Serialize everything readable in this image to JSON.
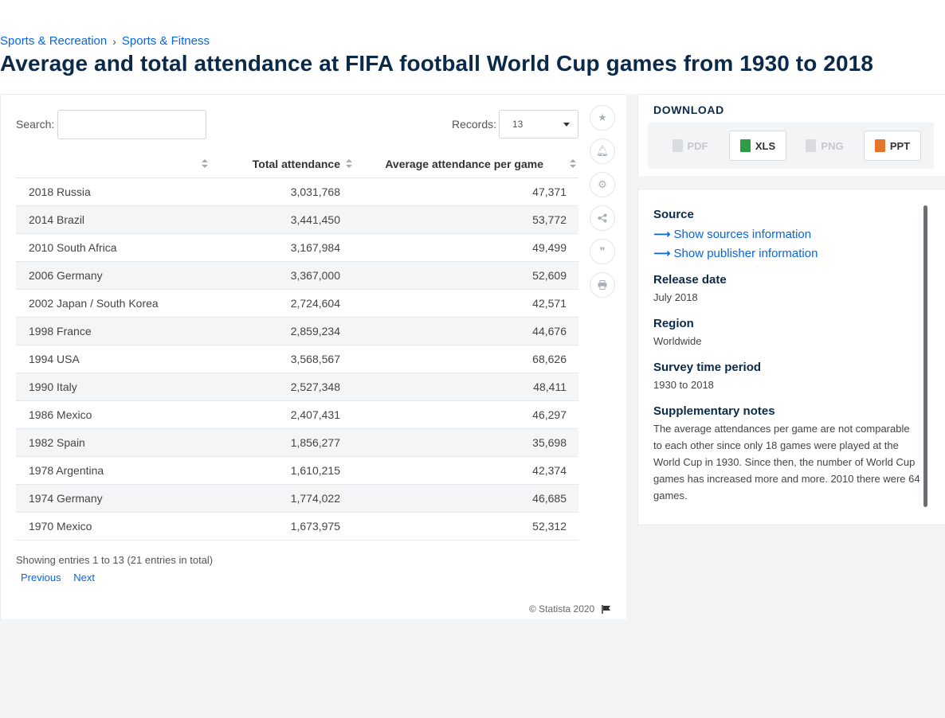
{
  "breadcrumb": [
    {
      "label": "Sports & Recreation"
    },
    {
      "label": "Sports & Fitness"
    }
  ],
  "page_title": "Average and total attendance at FIFA football World Cup games from 1930 to 2018",
  "table_controls": {
    "search_label": "Search:",
    "search_value": "",
    "records_label": "Records:",
    "records_value": "13"
  },
  "chart_data": {
    "type": "table",
    "columns": [
      "",
      "Total attendance",
      "Average attendance per game"
    ],
    "rows": [
      [
        "2018 Russia",
        "3,031,768",
        "47,371"
      ],
      [
        "2014 Brazil",
        "3,441,450",
        "53,772"
      ],
      [
        "2010 South Africa",
        "3,167,984",
        "49,499"
      ],
      [
        "2006 Germany",
        "3,367,000",
        "52,609"
      ],
      [
        "2002 Japan / South Korea",
        "2,724,604",
        "42,571"
      ],
      [
        "1998 France",
        "2,859,234",
        "44,676"
      ],
      [
        "1994 USA",
        "3,568,567",
        "68,626"
      ],
      [
        "1990 Italy",
        "2,527,348",
        "48,411"
      ],
      [
        "1986 Mexico",
        "2,407,431",
        "46,297"
      ],
      [
        "1982 Spain",
        "1,856,277",
        "35,698"
      ],
      [
        "1978 Argentina",
        "1,610,215",
        "42,374"
      ],
      [
        "1974 Germany",
        "1,774,022",
        "46,685"
      ],
      [
        "1970 Mexico",
        "1,673,975",
        "52,312"
      ]
    ]
  },
  "table_footer": {
    "entries_info": "Showing entries 1 to 13 (21 entries in total)",
    "previous_label": "Previous",
    "next_label": "Next",
    "copyright": "© Statista 2020"
  },
  "tools": [
    "star-icon",
    "bell-icon",
    "gear-icon",
    "share-icon",
    "quote-icon",
    "print-icon"
  ],
  "download": {
    "title": "DOWNLOAD",
    "buttons": [
      {
        "label": "PDF",
        "enabled": false
      },
      {
        "label": "XLS",
        "enabled": true,
        "color": "#2e9b45"
      },
      {
        "label": "PNG",
        "enabled": false
      },
      {
        "label": "PPT",
        "enabled": true,
        "color": "#e8742a"
      }
    ]
  },
  "info": {
    "source_heading": "Source",
    "show_sources": "Show sources information",
    "show_publisher": "Show publisher information",
    "release_heading": "Release date",
    "release_value": "July 2018",
    "region_heading": "Region",
    "region_value": "Worldwide",
    "survey_heading": "Survey time period",
    "survey_value": "1930 to 2018",
    "notes_heading": "Supplementary notes",
    "notes_value": "The average attendances per game are not comparable to each other since only 18 games were played at the World Cup in 1930. Since then, the number of World Cup games has increased more and more. 2010 there were 64 games."
  },
  "colors": {
    "link": "#0666e5",
    "title": "#0b2a4a",
    "stripe": "#f4f5f7"
  }
}
